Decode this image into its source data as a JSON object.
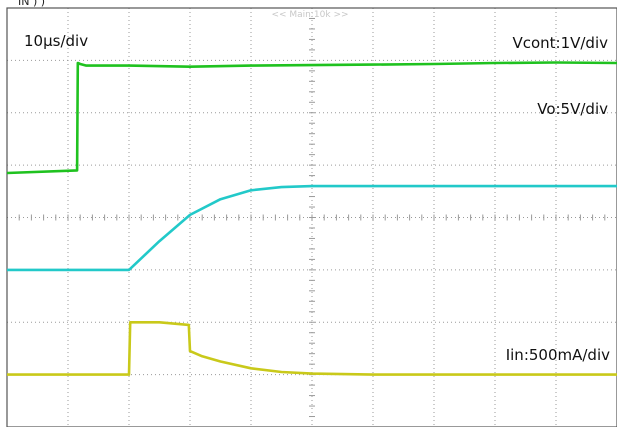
{
  "chart_data": {
    "type": "line",
    "header": "<< Main:10k >>",
    "top_cut_text": "IN    )                            )",
    "time_scale": "10μs/div",
    "x_unit": "div",
    "xlim": [
      0,
      10
    ],
    "ylim": [
      0,
      8
    ],
    "grid": true,
    "series": [
      {
        "name": "Vcont:1V/div",
        "color": "#1fc21f",
        "x": [
          0,
          1.15,
          1.16,
          1.2,
          1.3,
          2.0,
          3.0,
          4.0,
          5.0,
          6.0,
          7.0,
          8.0,
          9.0,
          10.0
        ],
        "y": [
          4.85,
          4.9,
          6.95,
          6.93,
          6.9,
          6.9,
          6.88,
          6.9,
          6.91,
          6.92,
          6.93,
          6.95,
          6.96,
          6.95
        ]
      },
      {
        "name": "Vo:5V/div",
        "color": "#22c9c9",
        "x": [
          0,
          2.0,
          2.5,
          3.0,
          3.5,
          4.0,
          4.5,
          5.0,
          6.0,
          7.0,
          8.0,
          9.0,
          10.0
        ],
        "y": [
          3.0,
          3.0,
          3.55,
          4.05,
          4.35,
          4.52,
          4.58,
          4.6,
          4.6,
          4.6,
          4.6,
          4.6,
          4.6
        ]
      },
      {
        "name": "Iin:500mA/div",
        "color": "#c9c91a",
        "x": [
          0,
          2.0,
          2.02,
          2.1,
          2.5,
          2.98,
          3.0,
          3.2,
          3.5,
          4.0,
          4.5,
          5.0,
          6.0,
          7.0,
          8.0,
          9.0,
          10.0
        ],
        "y": [
          1.0,
          1.0,
          2.0,
          2.0,
          2.0,
          1.95,
          1.45,
          1.35,
          1.25,
          1.12,
          1.05,
          1.02,
          1.0,
          1.0,
          1.0,
          1.0,
          1.0
        ]
      }
    ]
  }
}
